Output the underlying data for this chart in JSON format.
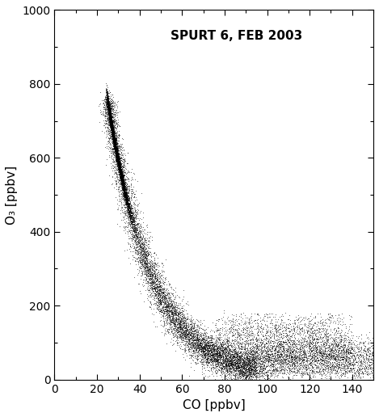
{
  "title": "SPURT 6, FEB 2003",
  "xlabel": "CO [ppbv]",
  "ylabel": "O₃ [ppbv]",
  "xlim": [
    0,
    150
  ],
  "ylim": [
    0,
    1000
  ],
  "xticks": [
    0,
    20,
    40,
    60,
    80,
    100,
    120,
    140
  ],
  "yticks": [
    0,
    200,
    400,
    600,
    800,
    1000
  ],
  "point_color": "black",
  "point_size": 1.2,
  "background_color": "white",
  "title_fontsize": 11,
  "axis_label_fontsize": 11,
  "tick_fontsize": 10,
  "seed": 42
}
